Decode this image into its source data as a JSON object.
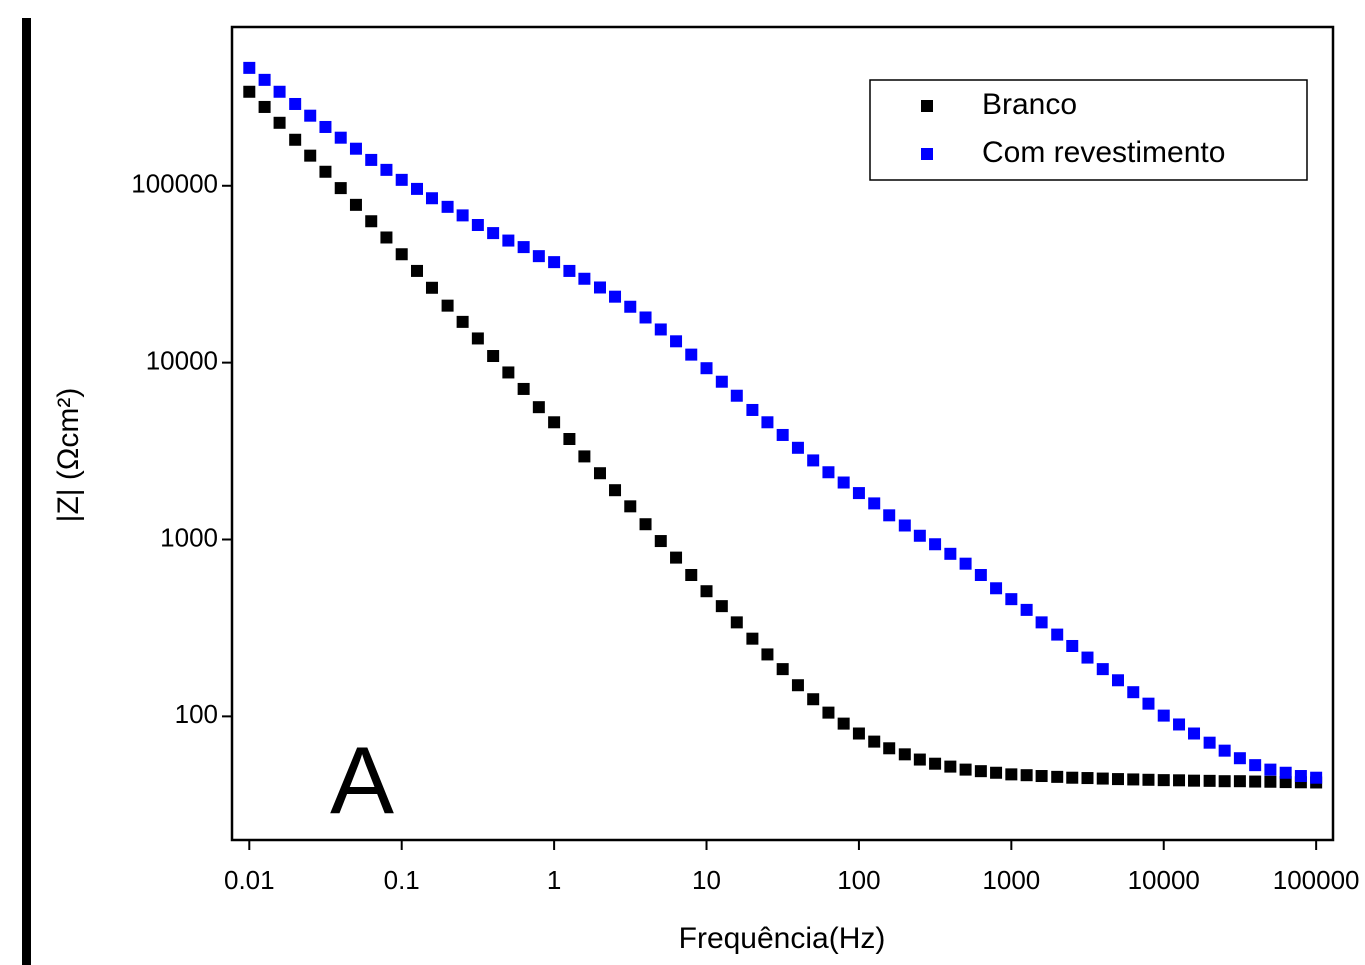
{
  "chart_data": {
    "type": "scatter",
    "xlabel": "Frequência(Hz)",
    "ylabel": "|Z| (Ωcm²)",
    "annotation": "A",
    "log_x": true,
    "log_y": true,
    "legend": "upper right",
    "xlim": [
      0.0077,
      129000
    ],
    "ylim": [
      20,
      790000
    ],
    "xticks": [
      0.01,
      0.1,
      1,
      10,
      100,
      1000,
      10000,
      100000
    ],
    "yticks": [
      100,
      1000,
      10000,
      100000
    ],
    "x": [
      0.01,
      0.0126,
      0.0158,
      0.02,
      0.0251,
      0.0316,
      0.0398,
      0.0501,
      0.0631,
      0.0794,
      0.1,
      0.126,
      0.158,
      0.2,
      0.251,
      0.316,
      0.398,
      0.501,
      0.631,
      0.794,
      1,
      1.26,
      1.58,
      2,
      2.51,
      3.16,
      3.98,
      5.01,
      6.31,
      7.94,
      10,
      12.6,
      15.8,
      20,
      25.1,
      31.6,
      39.8,
      50.1,
      63.1,
      79.4,
      100,
      126,
      158,
      200,
      251,
      316,
      398,
      501,
      631,
      794,
      1000,
      1260,
      1580,
      2000,
      2510,
      3160,
      3980,
      5010,
      6310,
      7940,
      10000,
      12600,
      15800,
      20000,
      25100,
      31600,
      39800,
      50100,
      63100,
      79400,
      100000
    ],
    "series": [
      {
        "name": "Branco",
        "color": "#000000",
        "values": [
          340000,
          279000,
          227000,
          182000,
          148000,
          120000,
          97000,
          78000,
          63000,
          51000,
          41000,
          33000,
          26500,
          21000,
          17000,
          13700,
          10900,
          8800,
          7100,
          5600,
          4600,
          3700,
          2950,
          2370,
          1900,
          1540,
          1220,
          980,
          790,
          630,
          510,
          420,
          340,
          275,
          224,
          185,
          150,
          125,
          105,
          91,
          80,
          72,
          66,
          61,
          57,
          54,
          52,
          50,
          49,
          48,
          47,
          46.5,
          46,
          45.5,
          45,
          44.8,
          44.5,
          44.2,
          44,
          43.8,
          43.6,
          43.5,
          43.3,
          43.2,
          43,
          43,
          42.8,
          42.7,
          42.5,
          42.4,
          42.3
        ]
      },
      {
        "name": "Com revestimento",
        "color": "#0000ff",
        "values": [
          464000,
          397000,
          340000,
          290000,
          249000,
          215000,
          187000,
          162000,
          140000,
          123000,
          108000,
          96000,
          85000,
          76000,
          68000,
          60000,
          54000,
          49000,
          45000,
          40000,
          37000,
          33000,
          29800,
          26600,
          23600,
          20700,
          18000,
          15400,
          13200,
          11100,
          9300,
          7800,
          6500,
          5400,
          4600,
          3900,
          3300,
          2800,
          2400,
          2100,
          1830,
          1600,
          1370,
          1200,
          1050,
          940,
          830,
          730,
          630,
          530,
          460,
          400,
          340,
          290,
          250,
          215,
          185,
          160,
          137,
          118,
          101,
          90,
          80,
          71,
          64,
          58,
          53,
          50,
          48,
          46,
          45
        ]
      }
    ]
  }
}
